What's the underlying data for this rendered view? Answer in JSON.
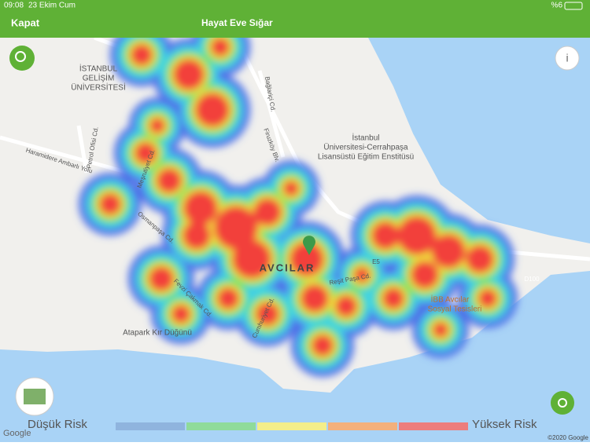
{
  "status_bar": {
    "time": "09:08",
    "date": "23 Ekim Cum",
    "battery": "%6"
  },
  "header": {
    "close": "Kapat",
    "title": "Hayat Eve Sığar"
  },
  "map": {
    "places": [
      "İSTANBUL",
      "GELİŞİM",
      "ÜNİVERSİTESİ",
      "İstanbul",
      "Üniversitesi-Cerrahpaşa",
      "Lisansüstü Eğitim Enstitüsü",
      "AVCILAR",
      "Atapark Kır Düğünü",
      "İBB Avcılar",
      "Sosyal Tesisleri"
    ],
    "roads": [
      "Haramidere Ambarlı Yolu",
      "Petrol Ofisi Cd.",
      "Meşrutiyet Cd.",
      "Osmanpaşa Cd.",
      "Reşit Paşa Cd.",
      "Cumhuriyet Cd.",
      "Fevzi Çakmak Cd.",
      "Bağlariçi Cd.",
      "Firuzköy Blv.",
      "E5",
      "D100"
    ],
    "attribution": "Google",
    "copyright": "©2020 Google"
  },
  "legend": {
    "low": "Düşük Risk",
    "high": "Yüksek Risk"
  }
}
